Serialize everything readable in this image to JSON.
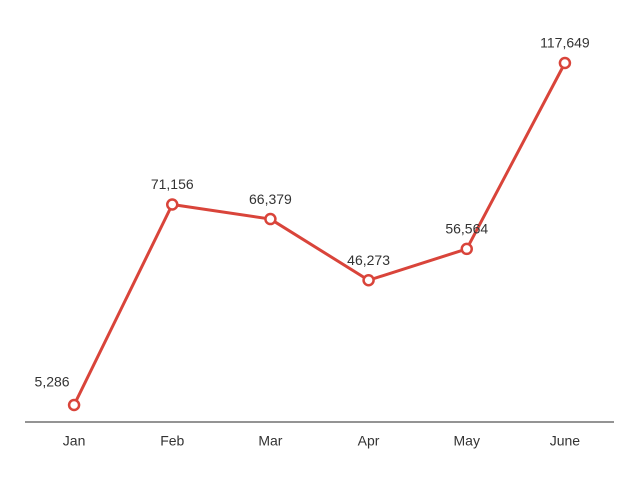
{
  "chart_data": {
    "type": "line",
    "categories": [
      "Jan",
      "Feb",
      "Mar",
      "Apr",
      "May",
      "June"
    ],
    "values": [
      5286,
      71156,
      66379,
      46273,
      56564,
      117649
    ],
    "value_labels": [
      "5,286",
      "71,156",
      "66,379",
      "46,273",
      "56,564",
      "117,649"
    ],
    "color": "#d9443a"
  }
}
